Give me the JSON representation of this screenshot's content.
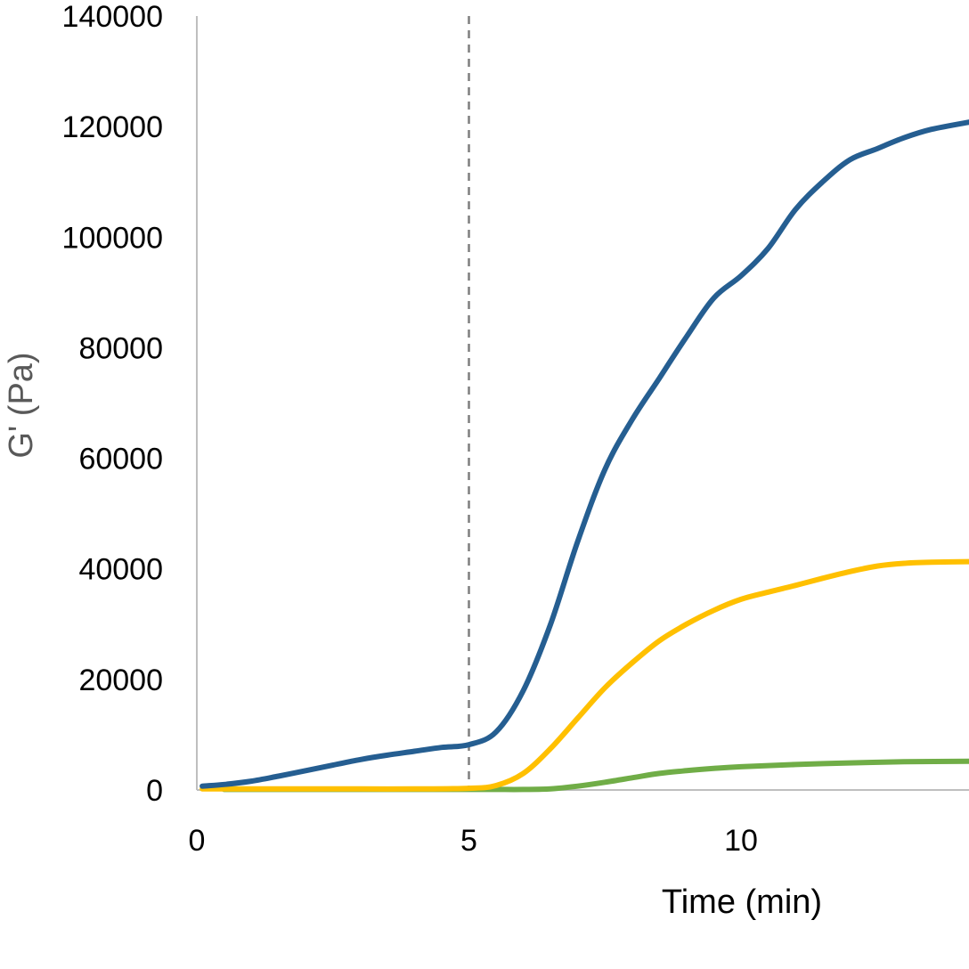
{
  "chart_data": {
    "type": "line",
    "title": "",
    "xlabel": "Time (min)",
    "ylabel": "G' (Pa)",
    "xlim": [
      0,
      14.3
    ],
    "ylim": [
      0,
      140000
    ],
    "xticks": [
      0,
      5,
      10
    ],
    "yticks": [
      0,
      20000,
      40000,
      60000,
      80000,
      100000,
      120000,
      140000
    ],
    "xtick_labels": [
      "0",
      "5",
      "10"
    ],
    "ytick_labels": [
      "0",
      "20000",
      "40000",
      "60000",
      "80000",
      "100000",
      "120000",
      "140000"
    ],
    "grid": false,
    "legend": "none",
    "reference_line": {
      "x": 5,
      "style": "dashed",
      "color": "#7f7f7f"
    },
    "series": [
      {
        "color": "#255E91",
        "x": [
          0.1,
          0.5,
          1.0,
          1.5,
          2.0,
          2.5,
          3.0,
          3.5,
          4.0,
          4.5,
          5.0,
          5.5,
          6.0,
          6.5,
          7.0,
          7.5,
          8.0,
          8.5,
          9.0,
          9.5,
          10.0,
          10.5,
          11.0,
          11.5,
          12.0,
          12.5,
          13.0,
          13.5,
          14.3
        ],
        "y": [
          700,
          1000,
          1600,
          2500,
          3500,
          4500,
          5500,
          6300,
          7000,
          7700,
          8200,
          10500,
          18000,
          30000,
          45000,
          58000,
          67000,
          74500,
          82000,
          89000,
          93000,
          98000,
          105000,
          110000,
          114000,
          116000,
          118000,
          119500,
          121000
        ]
      },
      {
        "color": "#FFC000",
        "x": [
          0.1,
          1.0,
          2.0,
          3.0,
          4.0,
          5.0,
          5.5,
          6.0,
          6.5,
          7.0,
          7.5,
          8.0,
          8.5,
          9.0,
          9.5,
          10.0,
          10.5,
          11.0,
          11.5,
          12.0,
          12.5,
          13.0,
          13.5,
          14.3
        ],
        "y": [
          200,
          200,
          200,
          200,
          200,
          300,
          800,
          3000,
          7500,
          13000,
          18500,
          23000,
          27000,
          30000,
          32500,
          34500,
          35800,
          37000,
          38300,
          39500,
          40500,
          41000,
          41200,
          41300
        ]
      },
      {
        "color": "#70AD47",
        "x": [
          0.5,
          1.0,
          2.0,
          3.0,
          4.0,
          5.0,
          5.5,
          6.0,
          6.5,
          7.0,
          7.5,
          8.0,
          8.5,
          9.0,
          9.5,
          10.0,
          11.0,
          12.0,
          13.0,
          14.3
        ],
        "y": [
          100,
          100,
          100,
          100,
          100,
          100,
          100,
          100,
          200,
          700,
          1400,
          2200,
          3000,
          3500,
          3900,
          4200,
          4600,
          4900,
          5100,
          5200
        ]
      }
    ]
  }
}
